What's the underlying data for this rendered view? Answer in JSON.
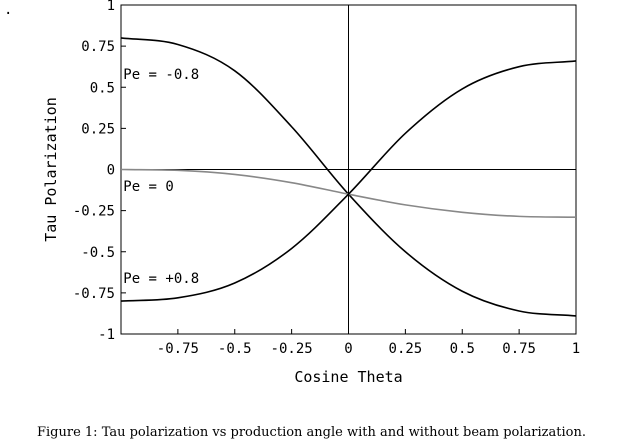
{
  "chart_data": {
    "type": "line",
    "title": "",
    "xlabel": "Cosine Theta",
    "ylabel": "Tau Polarization",
    "xlim": [
      -1,
      1
    ],
    "ylim": [
      -1,
      1
    ],
    "grid": false,
    "x_ticks": [
      {
        "value": -0.75,
        "label": "-0.75"
      },
      {
        "value": -0.5,
        "label": "-0.5"
      },
      {
        "value": -0.25,
        "label": "-0.25"
      },
      {
        "value": 0,
        "label": "0"
      },
      {
        "value": 0.25,
        "label": "0.25"
      },
      {
        "value": 0.5,
        "label": "0.5"
      },
      {
        "value": 0.75,
        "label": "0.75"
      },
      {
        "value": 1,
        "label": "1"
      }
    ],
    "y_ticks": [
      {
        "value": 1,
        "label": "1"
      },
      {
        "value": 0.75,
        "label": "0.75"
      },
      {
        "value": 0.5,
        "label": "0.5"
      },
      {
        "value": 0.25,
        "label": "0.25"
      },
      {
        "value": 0,
        "label": "0"
      },
      {
        "value": -0.25,
        "label": "-0.25"
      },
      {
        "value": -0.5,
        "label": "-0.5"
      },
      {
        "value": -0.75,
        "label": "-0.75"
      },
      {
        "value": -1,
        "label": "-1"
      }
    ],
    "x": [
      -1,
      -0.75,
      -0.5,
      -0.25,
      0,
      0.25,
      0.5,
      0.75,
      1
    ],
    "series": [
      {
        "label": "Pe = -0.8",
        "color": "#000000",
        "values": [
          0.8,
          0.76,
          0.6,
          0.26,
          -0.15,
          -0.5,
          -0.74,
          -0.86,
          -0.89
        ]
      },
      {
        "label": "Pe = 0",
        "color": "#888888",
        "values": [
          0.0,
          -0.005,
          -0.03,
          -0.08,
          -0.15,
          -0.215,
          -0.26,
          -0.285,
          -0.29
        ]
      },
      {
        "label": "Pe = +0.8",
        "color": "#000000",
        "values": [
          -0.8,
          -0.78,
          -0.69,
          -0.48,
          -0.15,
          0.22,
          0.49,
          0.625,
          0.66
        ]
      }
    ],
    "annotations": [
      {
        "text": "Pe = -0.8",
        "x": -0.99,
        "y": 0.58
      },
      {
        "text": "Pe = 0",
        "x": -0.99,
        "y": -0.1
      },
      {
        "text": "Pe = +0.8",
        "x": -0.99,
        "y": -0.66
      }
    ]
  },
  "caption": "Figure 1: Tau polarization vs production angle with and without beam polarization.",
  "corner_mark": "."
}
